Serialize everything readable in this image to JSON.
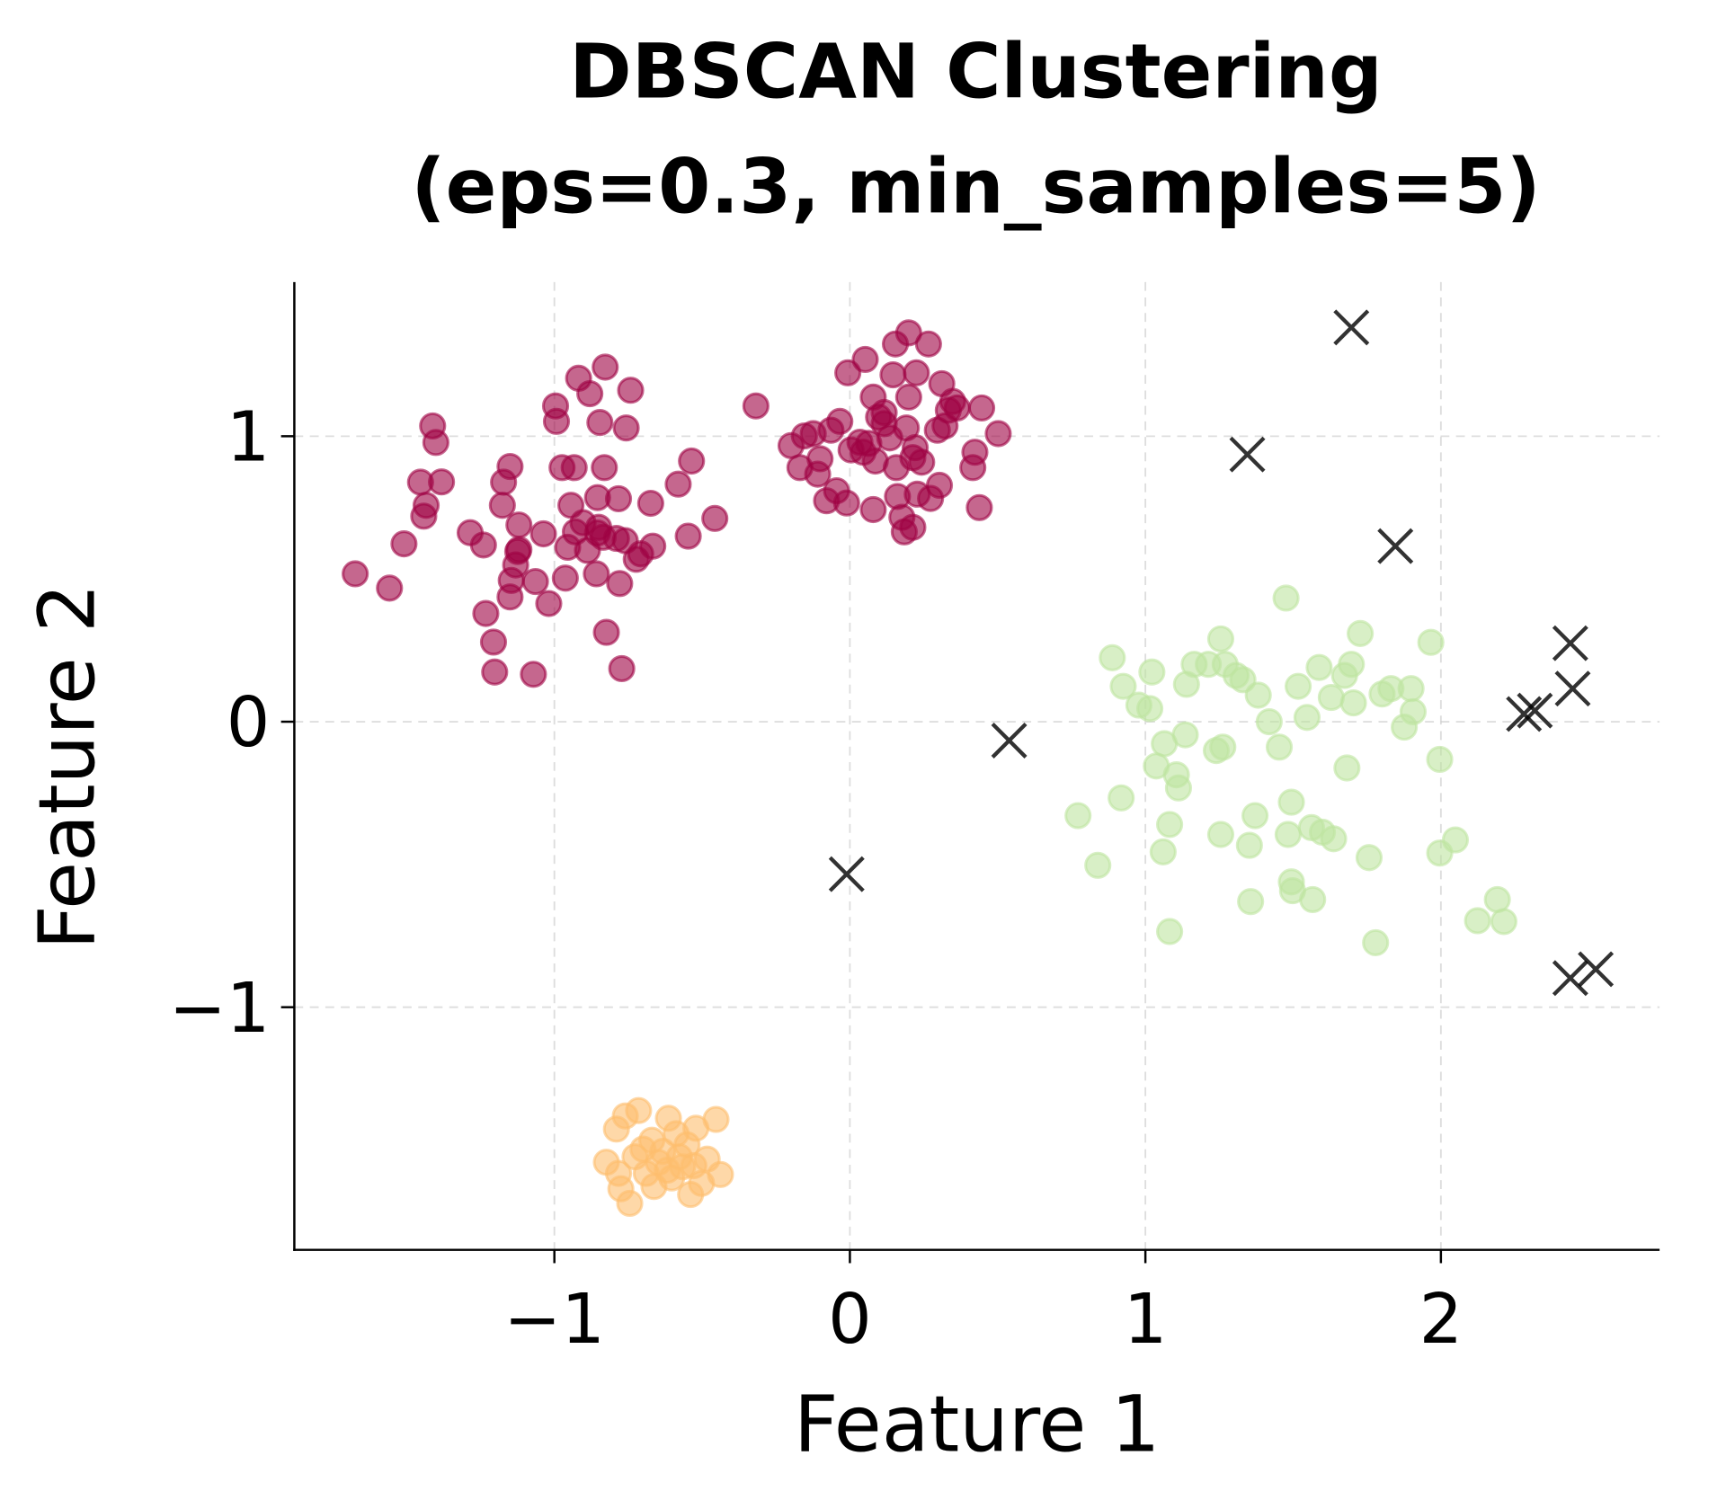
{
  "chart_data": {
    "type": "scatter",
    "title": "DBSCAN Clustering\n(eps=0.3, min_samples=5)",
    "title_lines": [
      "DBSCAN Clustering",
      "(eps=0.3, min_samples=5)"
    ],
    "xlabel": "Feature 1",
    "ylabel": "Feature 2",
    "xlim": [
      -1.88,
      2.74
    ],
    "ylim": [
      -1.85,
      1.54
    ],
    "xticks": [
      -1,
      0,
      1,
      2
    ],
    "yticks": [
      -1,
      0,
      1
    ],
    "xtick_labels": [
      "−1",
      "0",
      "1",
      "2"
    ],
    "ytick_labels": [
      "−1",
      "0",
      "1"
    ],
    "grid": true,
    "legend": "none",
    "series": [
      {
        "color": "#9e0142",
        "marker": "circle",
        "points": [
          [
            -1.674,
            0.518
          ],
          [
            -1.558,
            0.468
          ],
          [
            -1.509,
            0.623
          ],
          [
            -1.412,
            1.036
          ],
          [
            -1.401,
            0.978
          ],
          [
            -1.453,
            0.839
          ],
          [
            -1.434,
            0.758
          ],
          [
            -1.442,
            0.72
          ],
          [
            -1.382,
            0.84
          ],
          [
            -1.285,
            0.662
          ],
          [
            -1.24,
            0.619
          ],
          [
            -1.232,
            0.379
          ],
          [
            -1.206,
            0.279
          ],
          [
            -1.202,
            0.174
          ],
          [
            -1.176,
            0.758
          ],
          [
            -1.172,
            0.839
          ],
          [
            -1.15,
            0.894
          ],
          [
            -1.124,
            0.596
          ],
          [
            -1.146,
            0.495
          ],
          [
            -1.15,
            0.437
          ],
          [
            -1.12,
            0.603
          ],
          [
            -1.131,
            0.549
          ],
          [
            -1.12,
            0.689
          ],
          [
            -1.071,
            0.166
          ],
          [
            -1.064,
            0.491
          ],
          [
            -1.037,
            0.658
          ],
          [
            -1.019,
            0.414
          ],
          [
            -0.993,
            1.052
          ],
          [
            -0.996,
            1.106
          ],
          [
            -0.974,
            0.89
          ],
          [
            -0.963,
            0.503
          ],
          [
            -0.955,
            0.611
          ],
          [
            -0.933,
            0.89
          ],
          [
            -0.944,
            0.758
          ],
          [
            -0.929,
            0.665
          ],
          [
            -0.918,
            1.203
          ],
          [
            -0.88,
            1.149
          ],
          [
            -0.888,
            0.6
          ],
          [
            -0.903,
            0.697
          ],
          [
            -0.858,
            0.518
          ],
          [
            -0.854,
            0.661
          ],
          [
            -0.85,
            0.681
          ],
          [
            -0.828,
            1.242
          ],
          [
            -0.831,
            0.89
          ],
          [
            -0.846,
            1.048
          ],
          [
            -0.854,
            0.785
          ],
          [
            -0.835,
            0.646
          ],
          [
            -0.824,
            0.313
          ],
          [
            -0.79,
            0.642
          ],
          [
            -0.783,
            0.781
          ],
          [
            -0.779,
            0.484
          ],
          [
            -0.772,
            0.186
          ],
          [
            -0.757,
            1.029
          ],
          [
            -0.742,
            1.161
          ],
          [
            -0.76,
            0.634
          ],
          [
            -0.723,
            0.569
          ],
          [
            -0.708,
            0.588
          ],
          [
            -0.674,
            0.765
          ],
          [
            -0.667,
            0.615
          ],
          [
            -0.581,
            0.832
          ],
          [
            -0.547,
            0.65
          ],
          [
            -0.536,
            0.913
          ],
          [
            -0.457,
            0.712
          ],
          [
            -0.318,
            1.106
          ],
          [
            -0.199,
            0.967
          ],
          [
            -0.169,
            0.89
          ],
          [
            -0.154,
            1.001
          ],
          [
            -0.124,
            1.009
          ],
          [
            -0.109,
            0.867
          ],
          [
            -0.101,
            0.921
          ],
          [
            -0.079,
            0.774
          ],
          [
            -0.064,
            1.021
          ],
          [
            -0.045,
            0.809
          ],
          [
            -0.034,
            1.052
          ],
          [
            -0.011,
            0.766
          ],
          [
            -0.007,
            1.222
          ],
          [
            0.004,
            0.952
          ],
          [
            0.034,
            0.979
          ],
          [
            0.045,
            0.944
          ],
          [
            0.052,
            1.269
          ],
          [
            0.064,
            0.975
          ],
          [
            0.079,
            1.137
          ],
          [
            0.086,
            0.913
          ],
          [
            0.079,
            0.743
          ],
          [
            0.097,
            1.067
          ],
          [
            0.116,
            1.083
          ],
          [
            0.116,
            1.044
          ],
          [
            0.135,
            0.994
          ],
          [
            0.154,
            1.323
          ],
          [
            0.146,
            1.215
          ],
          [
            0.157,
            0.89
          ],
          [
            0.161,
            0.789
          ],
          [
            0.176,
            0.716
          ],
          [
            0.184,
            0.665
          ],
          [
            0.191,
            1.029
          ],
          [
            0.199,
            1.362
          ],
          [
            0.199,
            1.137
          ],
          [
            0.213,
            0.925
          ],
          [
            0.213,
            0.681
          ],
          [
            0.221,
            0.96
          ],
          [
            0.228,
            0.797
          ],
          [
            0.225,
            1.222
          ],
          [
            0.243,
            0.909
          ],
          [
            0.266,
            1.323
          ],
          [
            0.273,
            0.782
          ],
          [
            0.296,
            1.021
          ],
          [
            0.303,
            0.828
          ],
          [
            0.311,
            1.184
          ],
          [
            0.322,
            1.036
          ],
          [
            0.333,
            1.091
          ],
          [
            0.348,
            1.122
          ],
          [
            0.363,
            1.099
          ],
          [
            0.423,
            0.944
          ],
          [
            0.416,
            0.89
          ],
          [
            0.438,
            0.75
          ],
          [
            0.446,
            1.099
          ],
          [
            0.502,
            1.009
          ]
        ]
      },
      {
        "color": "#fdbe6e",
        "marker": "circle",
        "points": [
          [
            -0.824,
            -1.543
          ],
          [
            -0.79,
            -1.427
          ],
          [
            -0.76,
            -1.381
          ],
          [
            -0.745,
            -1.687
          ],
          [
            -0.715,
            -1.362
          ],
          [
            -0.775,
            -1.636
          ],
          [
            -0.727,
            -1.524
          ],
          [
            -0.689,
            -1.582
          ],
          [
            -0.67,
            -1.466
          ],
          [
            -0.648,
            -1.544
          ],
          [
            -0.633,
            -1.505
          ],
          [
            -0.614,
            -1.389
          ],
          [
            -0.603,
            -1.598
          ],
          [
            -0.588,
            -1.443
          ],
          [
            -0.566,
            -1.559
          ],
          [
            -0.551,
            -1.482
          ],
          [
            -0.539,
            -1.656
          ],
          [
            -0.521,
            -1.424
          ],
          [
            -0.502,
            -1.617
          ],
          [
            -0.483,
            -1.532
          ],
          [
            -0.453,
            -1.393
          ],
          [
            -0.438,
            -1.586
          ],
          [
            -0.783,
            -1.582
          ],
          [
            -0.663,
            -1.628
          ],
          [
            -0.577,
            -1.524
          ],
          [
            -0.7,
            -1.497
          ],
          [
            -0.618,
            -1.571
          ],
          [
            -0.528,
            -1.555
          ]
        ]
      },
      {
        "color": "#bee5a0",
        "marker": "circle",
        "points": [
          [
            0.772,
            -0.329
          ],
          [
            0.839,
            -0.503
          ],
          [
            0.888,
            0.224
          ],
          [
            0.918,
            -0.267
          ],
          [
            0.925,
            0.124
          ],
          [
            0.978,
            0.058
          ],
          [
            1.015,
            0.046
          ],
          [
            1.022,
            0.174
          ],
          [
            1.037,
            -0.155
          ],
          [
            1.06,
            -0.456
          ],
          [
            1.064,
            -0.077
          ],
          [
            1.082,
            -0.36
          ],
          [
            1.082,
            -0.735
          ],
          [
            1.105,
            -0.186
          ],
          [
            1.112,
            -0.232
          ],
          [
            1.135,
            -0.046
          ],
          [
            1.139,
            0.131
          ],
          [
            1.165,
            0.201
          ],
          [
            1.213,
            0.201
          ],
          [
            1.24,
            -0.101
          ],
          [
            1.255,
            -0.395
          ],
          [
            1.262,
            -0.089
          ],
          [
            1.255,
            0.29
          ],
          [
            1.27,
            0.201
          ],
          [
            1.307,
            0.162
          ],
          [
            1.33,
            0.147
          ],
          [
            1.352,
            -0.433
          ],
          [
            1.356,
            -0.63
          ],
          [
            1.371,
            -0.329
          ],
          [
            1.382,
            0.093
          ],
          [
            1.419,
            0.0
          ],
          [
            1.453,
            -0.089
          ],
          [
            1.476,
            0.433
          ],
          [
            1.483,
            -0.395
          ],
          [
            1.494,
            -0.282
          ],
          [
            1.494,
            -0.561
          ],
          [
            1.498,
            -0.592
          ],
          [
            1.517,
            0.124
          ],
          [
            1.547,
            0.015
          ],
          [
            1.562,
            -0.371
          ],
          [
            1.566,
            -0.623
          ],
          [
            1.588,
            0.19
          ],
          [
            1.599,
            -0.387
          ],
          [
            1.629,
            0.085
          ],
          [
            1.637,
            -0.41
          ],
          [
            1.674,
            0.162
          ],
          [
            1.682,
            -0.162
          ],
          [
            1.697,
            0.201
          ],
          [
            1.704,
            0.066
          ],
          [
            1.727,
            0.309
          ],
          [
            1.757,
            -0.476
          ],
          [
            1.779,
            -0.774
          ],
          [
            1.801,
            0.097
          ],
          [
            1.831,
            0.116
          ],
          [
            1.876,
            -0.019
          ],
          [
            1.899,
            0.116
          ],
          [
            1.906,
            0.035
          ],
          [
            1.966,
            0.278
          ],
          [
            1.996,
            -0.132
          ],
          [
            1.996,
            -0.46
          ],
          [
            2.049,
            -0.414
          ],
          [
            2.124,
            -0.697
          ],
          [
            2.191,
            -0.623
          ],
          [
            2.213,
            -0.7
          ]
        ]
      },
      {
        "color": "#000000",
        "marker": "x",
        "points": [
          [
            1.697,
            1.381
          ],
          [
            1.345,
            0.936
          ],
          [
            1.846,
            0.615
          ],
          [
            2.438,
            0.275
          ],
          [
            2.446,
            0.116
          ],
          [
            2.281,
            0.027
          ],
          [
            2.318,
            0.039
          ],
          [
            0.539,
            -0.066
          ],
          [
            -0.011,
            -0.534
          ],
          [
            2.438,
            -0.898
          ],
          [
            2.524,
            -0.867
          ]
        ]
      }
    ]
  }
}
